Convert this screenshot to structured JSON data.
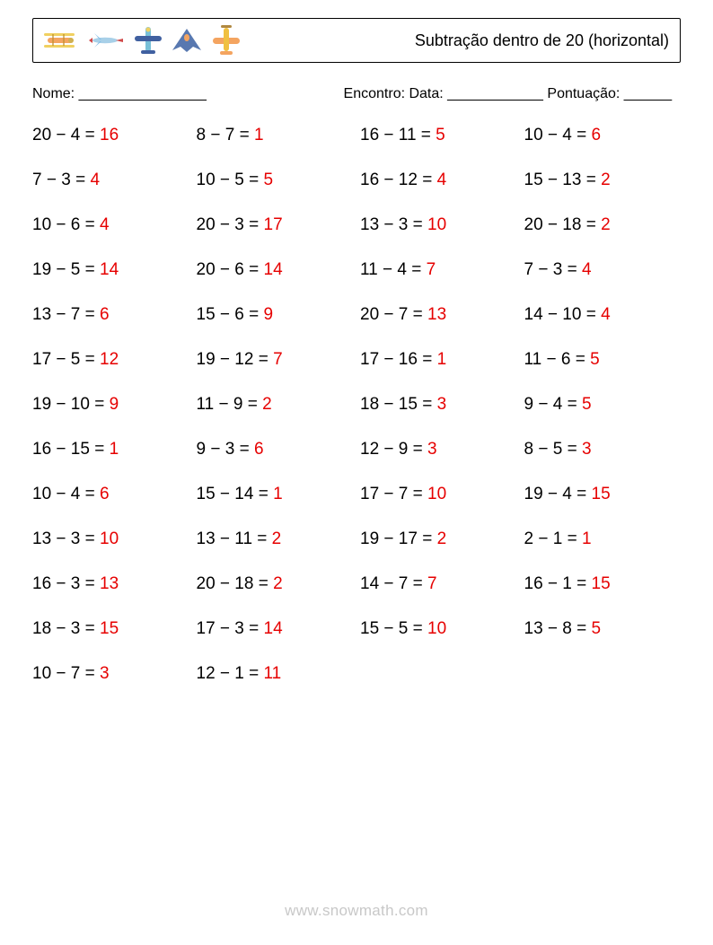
{
  "header": {
    "title": "Subtração dentro de 20 (horizontal)",
    "title_fontsize": 18,
    "border_color": "#000000",
    "background_color": "#ffffff",
    "icon_colors": {
      "plane1_body": "#f4a460",
      "plane1_wing": "#f0d060",
      "plane2_body": "#88c0e8",
      "plane2_accent": "#d04848",
      "plane3_body": "#78c0d8",
      "plane3_wing": "#4060a0",
      "plane4_body": "#5878b0",
      "plane4_canopy": "#f4a460",
      "plane5_body": "#f0c040",
      "plane5_wing": "#f4a460"
    }
  },
  "info": {
    "name_label": "Nome: ________________",
    "encounter_label": "Encontro: Data: ____________   Pontuação: ______"
  },
  "grid": {
    "columns": 4,
    "row_gap": 28,
    "text_color": "#000000",
    "answer_color": "#e60000",
    "fontsize": 19
  },
  "problems": [
    {
      "a": 20,
      "b": 4,
      "ans": 16
    },
    {
      "a": 8,
      "b": 7,
      "ans": 1
    },
    {
      "a": 16,
      "b": 11,
      "ans": 5
    },
    {
      "a": 10,
      "b": 4,
      "ans": 6
    },
    {
      "a": 7,
      "b": 3,
      "ans": 4
    },
    {
      "a": 10,
      "b": 5,
      "ans": 5
    },
    {
      "a": 16,
      "b": 12,
      "ans": 4
    },
    {
      "a": 15,
      "b": 13,
      "ans": 2
    },
    {
      "a": 10,
      "b": 6,
      "ans": 4
    },
    {
      "a": 20,
      "b": 3,
      "ans": 17
    },
    {
      "a": 13,
      "b": 3,
      "ans": 10
    },
    {
      "a": 20,
      "b": 18,
      "ans": 2
    },
    {
      "a": 19,
      "b": 5,
      "ans": 14
    },
    {
      "a": 20,
      "b": 6,
      "ans": 14
    },
    {
      "a": 11,
      "b": 4,
      "ans": 7
    },
    {
      "a": 7,
      "b": 3,
      "ans": 4
    },
    {
      "a": 13,
      "b": 7,
      "ans": 6
    },
    {
      "a": 15,
      "b": 6,
      "ans": 9
    },
    {
      "a": 20,
      "b": 7,
      "ans": 13
    },
    {
      "a": 14,
      "b": 10,
      "ans": 4
    },
    {
      "a": 17,
      "b": 5,
      "ans": 12
    },
    {
      "a": 19,
      "b": 12,
      "ans": 7
    },
    {
      "a": 17,
      "b": 16,
      "ans": 1
    },
    {
      "a": 11,
      "b": 6,
      "ans": 5
    },
    {
      "a": 19,
      "b": 10,
      "ans": 9
    },
    {
      "a": 11,
      "b": 9,
      "ans": 2
    },
    {
      "a": 18,
      "b": 15,
      "ans": 3
    },
    {
      "a": 9,
      "b": 4,
      "ans": 5
    },
    {
      "a": 16,
      "b": 15,
      "ans": 1
    },
    {
      "a": 9,
      "b": 3,
      "ans": 6
    },
    {
      "a": 12,
      "b": 9,
      "ans": 3
    },
    {
      "a": 8,
      "b": 5,
      "ans": 3
    },
    {
      "a": 10,
      "b": 4,
      "ans": 6
    },
    {
      "a": 15,
      "b": 14,
      "ans": 1
    },
    {
      "a": 17,
      "b": 7,
      "ans": 10
    },
    {
      "a": 19,
      "b": 4,
      "ans": 15
    },
    {
      "a": 13,
      "b": 3,
      "ans": 10
    },
    {
      "a": 13,
      "b": 11,
      "ans": 2
    },
    {
      "a": 19,
      "b": 17,
      "ans": 2
    },
    {
      "a": 2,
      "b": 1,
      "ans": 1
    },
    {
      "a": 16,
      "b": 3,
      "ans": 13
    },
    {
      "a": 20,
      "b": 18,
      "ans": 2
    },
    {
      "a": 14,
      "b": 7,
      "ans": 7
    },
    {
      "a": 16,
      "b": 1,
      "ans": 15
    },
    {
      "a": 18,
      "b": 3,
      "ans": 15
    },
    {
      "a": 17,
      "b": 3,
      "ans": 14
    },
    {
      "a": 15,
      "b": 5,
      "ans": 10
    },
    {
      "a": 13,
      "b": 8,
      "ans": 5
    },
    {
      "a": 10,
      "b": 7,
      "ans": 3
    },
    {
      "a": 12,
      "b": 1,
      "ans": 11
    }
  ],
  "footer": {
    "text": "www.snowmath.com",
    "color": "#c8c8c8",
    "fontsize": 17
  }
}
